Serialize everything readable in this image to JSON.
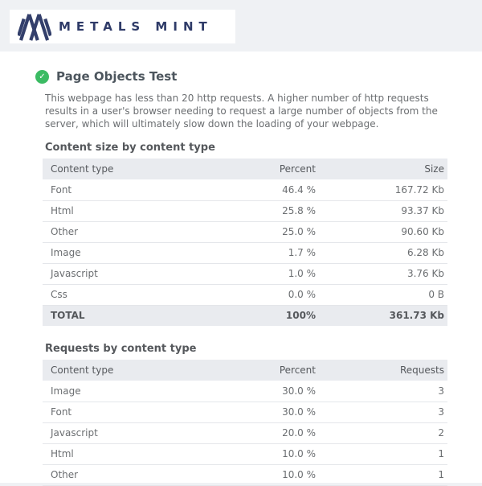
{
  "logo": {
    "text": "METALS MINT",
    "brand_color": "#2f3b68"
  },
  "test": {
    "title": "Page Objects Test",
    "status_icon": "check-icon",
    "status_color": "#3bbb63",
    "check_glyph": "✓",
    "description": "This webpage has less than 20 http requests. A higher number of http requests results in a user's browser needing to request a large number of objects from the server, which will ultimately slow down the loading of your webpage."
  },
  "tables": [
    {
      "heading": "Content size by content type",
      "columns": [
        "Content type",
        "Percent",
        "Size"
      ],
      "rows": [
        [
          "Font",
          "46.4 %",
          "167.72 Kb"
        ],
        [
          "Html",
          "25.8 %",
          "93.37 Kb"
        ],
        [
          "Other",
          "25.0 %",
          "90.60 Kb"
        ],
        [
          "Image",
          "1.7 %",
          "6.28 Kb"
        ],
        [
          "Javascript",
          "1.0 %",
          "3.76 Kb"
        ],
        [
          "Css",
          "0.0 %",
          "0 B"
        ]
      ],
      "total_row": [
        "TOTAL",
        "100%",
        "361.73 Kb"
      ]
    },
    {
      "heading": "Requests by content type",
      "columns": [
        "Content type",
        "Percent",
        "Requests"
      ],
      "rows": [
        [
          "Image",
          "30.0 %",
          "3"
        ],
        [
          "Font",
          "30.0 %",
          "3"
        ],
        [
          "Javascript",
          "20.0 %",
          "2"
        ],
        [
          "Html",
          "10.0 %",
          "1"
        ],
        [
          "Other",
          "10.0 %",
          "1"
        ]
      ]
    }
  ]
}
